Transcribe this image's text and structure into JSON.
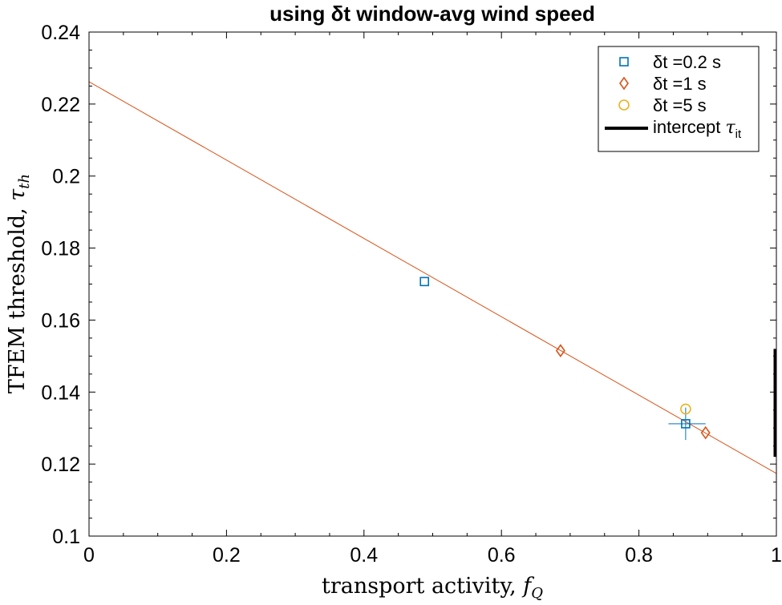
{
  "chart_data": {
    "type": "scatter",
    "title": "using δt window-avg wind speed",
    "xlabel": "transport activity, f_Q",
    "ylabel": "TFEM threshold, τ_th",
    "xlim": [
      0,
      1
    ],
    "ylim": [
      0.1,
      0.24
    ],
    "xticks": [
      0,
      0.2,
      0.4,
      0.6,
      0.8,
      1
    ],
    "xtick_labels": [
      "0",
      "0.2",
      "0.4",
      "0.6",
      "0.8",
      "1"
    ],
    "yticks": [
      0.1,
      0.12,
      0.14,
      0.16,
      0.18,
      0.2,
      0.22,
      0.24
    ],
    "ytick_labels": [
      "0.1",
      "0.12",
      "0.14",
      "0.16",
      "0.18",
      "0.2",
      "0.22",
      "0.24"
    ],
    "grid": false,
    "legend_position": "top-right",
    "series": [
      {
        "name": "δt =0.2 s",
        "marker": "square",
        "color": "#0072BD",
        "points": [
          {
            "x": 0.488,
            "y": 0.1707
          },
          {
            "x": 0.868,
            "y": 0.1312
          }
        ]
      },
      {
        "name": "δt =1 s",
        "marker": "diamond",
        "color": "#D95319",
        "points": [
          {
            "x": 0.686,
            "y": 0.1515
          },
          {
            "x": 0.897,
            "y": 0.1287
          }
        ]
      },
      {
        "name": "δt =5 s",
        "marker": "circle",
        "color": "#EDB120",
        "points": [
          {
            "x": 0.868,
            "y": 0.1353
          }
        ]
      }
    ],
    "error_bars": [
      {
        "x": 0.868,
        "y": 0.1312,
        "x_low": 0.843,
        "x_high": 0.897,
        "y_low": 0.1267,
        "y_high": 0.1357,
        "color": "#0072BD"
      }
    ],
    "fit_line": {
      "x": [
        0,
        1
      ],
      "y": [
        0.2262,
        0.1174
      ],
      "color": "#D95319"
    },
    "intercept": {
      "name": "intercept τ_it",
      "x": 1,
      "y_low": 0.122,
      "y_high": 0.152,
      "color": "#000000"
    }
  }
}
